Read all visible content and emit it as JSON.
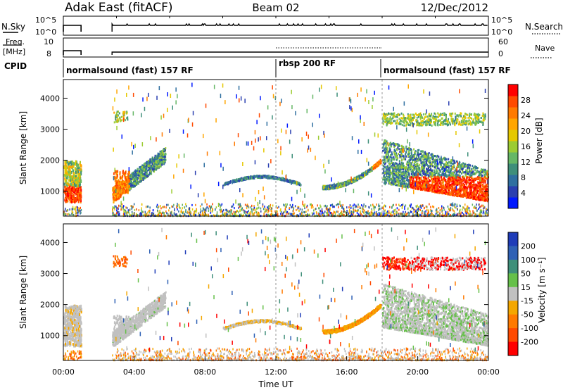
{
  "header": {
    "station": "Adak East (fitACF)",
    "beam": "Beam 02",
    "date": "12/Dec/2012"
  },
  "top_panels": {
    "nsky_label": "N.Sky",
    "nsky_ticks": [
      "10^5",
      "10^0"
    ],
    "nsearch_label": "N.Search",
    "nsearch_ticks": [
      "10^5",
      "10^0"
    ],
    "freq_label": [
      "Freq.",
      "[MHz]"
    ],
    "freq_ticks": [
      "10",
      "8"
    ],
    "nave_label": "Nave",
    "nave_ticks": [
      "60",
      "0"
    ],
    "cpid_label": "CPID",
    "cpid_segments": [
      "normalsound (fast) 157 RF",
      "rbsp 200 RF",
      "normalsound (fast) 157 RF"
    ]
  },
  "colors": {
    "power_scale": [
      "#0019ff",
      "#2a3fb0",
      "#2f6fa0",
      "#3f8f7a",
      "#66b766",
      "#9ccc33",
      "#e5c800",
      "#ffa500",
      "#ff7a00",
      "#ff4a00",
      "#ff0000"
    ],
    "velocity_scale": [
      "#1f3cb8",
      "#2f61b5",
      "#3f8f7a",
      "#66c04a",
      "#c0c0c0",
      "#f4a700",
      "#ff7a00",
      "#ff4a00",
      "#ff0000"
    ]
  },
  "chart_data": [
    {
      "type": "heatmap",
      "panel": "power",
      "ylabel": "Slant Range [km]",
      "y_ticks": [
        "1000",
        "2000",
        "3000",
        "4000"
      ],
      "ylim": [
        200,
        4600
      ],
      "colorbar_label": "Power [dB]",
      "colorbar_ticks": [
        "4",
        "8",
        "12",
        "16",
        "20",
        "24",
        "28"
      ],
      "colorbar_range": [
        0,
        32
      ]
    },
    {
      "type": "heatmap",
      "panel": "velocity",
      "ylabel": "Slant Range [km]",
      "y_ticks": [
        "1000",
        "2000",
        "3000",
        "4000"
      ],
      "ylim": [
        200,
        4600
      ],
      "xlabel": "Time UT",
      "x_ticks": [
        "00:00",
        "04:00",
        "08:00",
        "12:00",
        "16:00",
        "20:00",
        "00:00"
      ],
      "colorbar_label": "Velocity [m s⁻¹]",
      "colorbar_ticks": [
        "200",
        "100",
        "50",
        "15",
        "-15",
        "-50",
        "-100",
        "-200"
      ]
    }
  ]
}
